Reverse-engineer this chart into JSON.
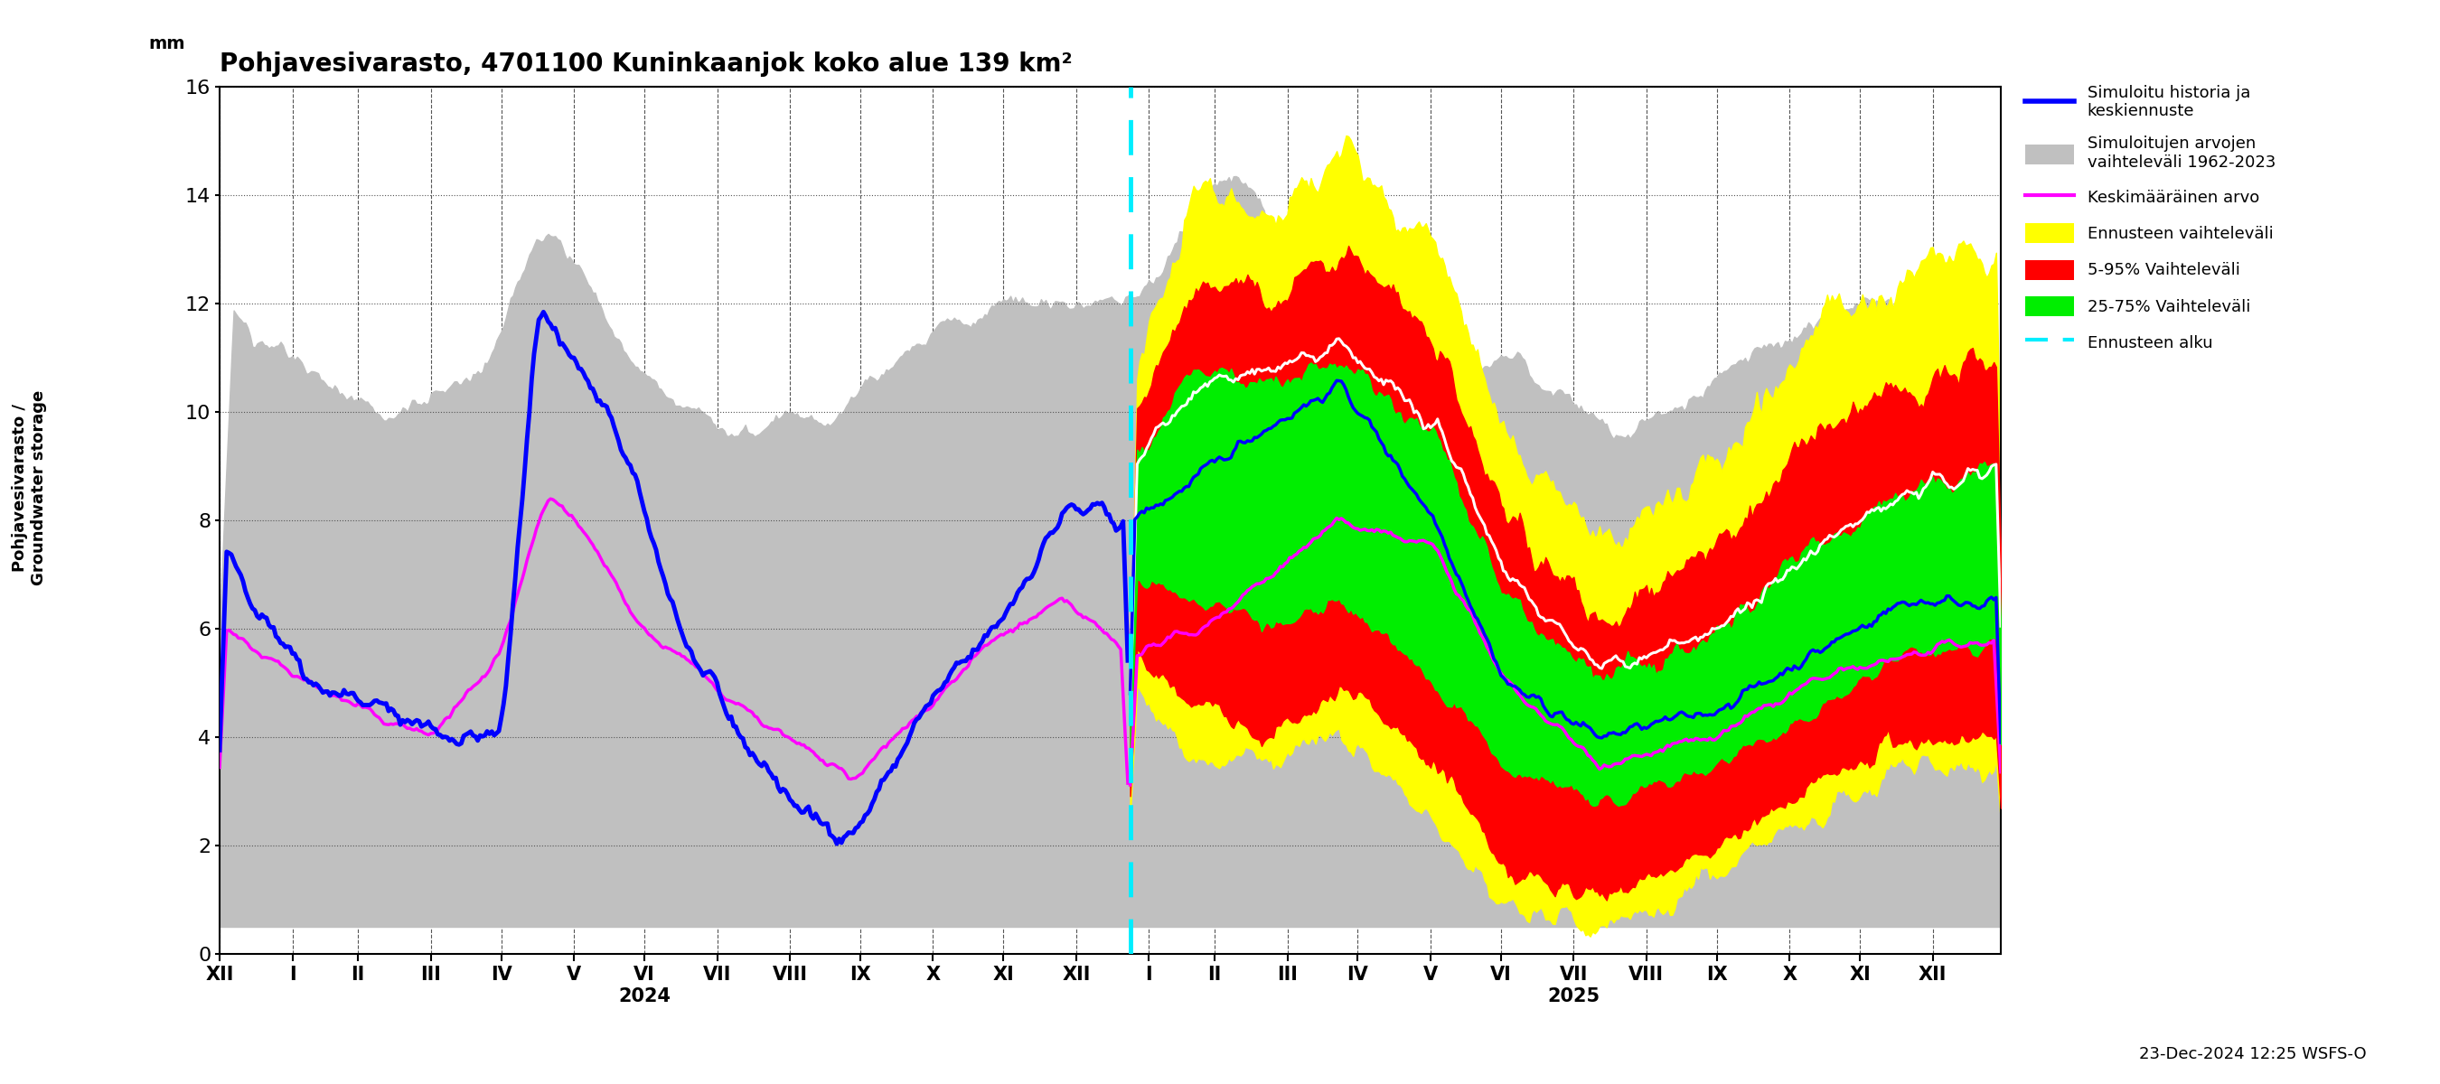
{
  "title": "Pohjavesivarasto, 4701100 Kuninkaanjok koko alue 139 km²",
  "ylabel_fi": "Pohjavesivarasto /",
  "ylabel_en": "Groundwater storage",
  "ylabel_unit": "mm",
  "ylim": [
    0,
    16
  ],
  "yticks": [
    0,
    2,
    4,
    6,
    8,
    10,
    12,
    14,
    16
  ],
  "background_color": "#ffffff",
  "colors": {
    "blue_line": "#0000ff",
    "magenta_line": "#ff00ff",
    "gray_fill": "#c0c0c0",
    "yellow_fill": "#ffff00",
    "red_fill": "#ff0000",
    "green_fill": "#00ee00",
    "white_line": "#ffffff",
    "cyan_dashed": "#00eeff"
  },
  "timestamp_label": "23-Dec-2024 12:25 WSFS-O",
  "month_labels": [
    "XII",
    "I",
    "II",
    "III",
    "IV",
    "V",
    "VI",
    "VII",
    "VIII",
    "IX",
    "X",
    "XI",
    "XII",
    "I",
    "II",
    "III",
    "IV",
    "V",
    "VI",
    "VII",
    "VIII",
    "IX",
    "X",
    "XI",
    "XII"
  ],
  "year_2024_label": "2024",
  "year_2025_label": "2025"
}
